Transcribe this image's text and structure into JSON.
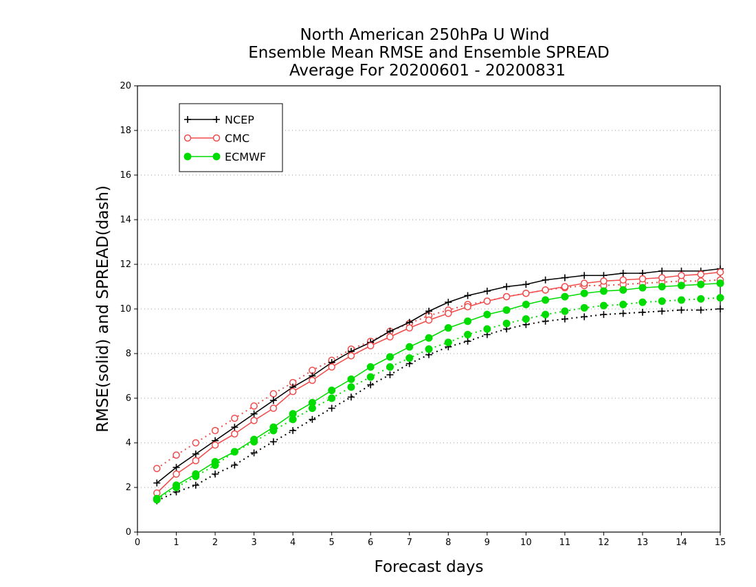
{
  "title_lines": [
    "North American 250hPa U Wind",
    "Ensemble Mean RMSE and Ensemble SPREAD",
    "Average For 20200601 - 20200831"
  ],
  "chart_data": {
    "type": "line",
    "title": "North American 250hPa U Wind / Ensemble Mean RMSE and Ensemble SPREAD / Average For 20200601 - 20200831",
    "xlabel": "Forecast days",
    "ylabel": "RMSE(solid) and SPREAD(dash)",
    "xlim": [
      0,
      15
    ],
    "ylim": [
      0,
      20
    ],
    "x_ticks": [
      0,
      1,
      2,
      3,
      4,
      5,
      6,
      7,
      8,
      9,
      10,
      11,
      12,
      13,
      14,
      15
    ],
    "y_ticks": [
      0,
      2,
      4,
      6,
      8,
      10,
      12,
      14,
      16,
      18,
      20
    ],
    "grid": "horizontal dotted",
    "legend_position": "top-left",
    "x": [
      0.5,
      1,
      1.5,
      2,
      2.5,
      3,
      3.5,
      4,
      4.5,
      5,
      5.5,
      6,
      6.5,
      7,
      7.5,
      8,
      8.5,
      9,
      9.5,
      10,
      10.5,
      11,
      11.5,
      12,
      12.5,
      13,
      13.5,
      14,
      14.5,
      15
    ],
    "series": [
      {
        "name": "NCEP",
        "metric": "RMSE",
        "style": "solid",
        "color": "#000000",
        "marker": "plus",
        "in_legend": true,
        "values": [
          2.2,
          2.9,
          3.5,
          4.1,
          4.7,
          5.3,
          5.9,
          6.5,
          7.0,
          7.6,
          8.1,
          8.5,
          9.0,
          9.4,
          9.9,
          10.3,
          10.6,
          10.8,
          11.0,
          11.1,
          11.3,
          11.4,
          11.5,
          11.5,
          11.6,
          11.6,
          11.7,
          11.7,
          11.7,
          11.8
        ]
      },
      {
        "name": "CMC",
        "metric": "RMSE",
        "style": "solid",
        "color": "#f04c4c",
        "marker": "open-circle",
        "in_legend": true,
        "values": [
          1.75,
          2.6,
          3.2,
          3.9,
          4.4,
          5.0,
          5.55,
          6.3,
          6.8,
          7.4,
          7.9,
          8.35,
          8.75,
          9.15,
          9.5,
          9.8,
          10.1,
          10.35,
          10.55,
          10.7,
          10.85,
          11.0,
          11.15,
          11.25,
          11.3,
          11.35,
          11.4,
          11.5,
          11.55,
          11.65
        ]
      },
      {
        "name": "ECMWF",
        "metric": "RMSE",
        "style": "solid",
        "color": "#00dc00",
        "marker": "filled-circle",
        "in_legend": true,
        "values": [
          1.5,
          2.1,
          2.6,
          3.15,
          3.6,
          4.15,
          4.7,
          5.3,
          5.8,
          6.35,
          6.85,
          7.4,
          7.85,
          8.3,
          8.7,
          9.15,
          9.45,
          9.75,
          9.95,
          10.2,
          10.4,
          10.55,
          10.7,
          10.8,
          10.85,
          10.95,
          11.0,
          11.05,
          11.1,
          11.15
        ]
      },
      {
        "name": "NCEP",
        "metric": "SPREAD",
        "style": "dotted",
        "color": "#000000",
        "marker": "plus",
        "in_legend": false,
        "values": [
          1.4,
          1.8,
          2.1,
          2.6,
          3.0,
          3.55,
          4.05,
          4.55,
          5.05,
          5.55,
          6.05,
          6.6,
          7.05,
          7.55,
          7.95,
          8.3,
          8.55,
          8.85,
          9.1,
          9.3,
          9.45,
          9.55,
          9.65,
          9.75,
          9.8,
          9.85,
          9.9,
          9.95,
          9.95,
          10.0
        ]
      },
      {
        "name": "CMC",
        "metric": "SPREAD",
        "style": "dotted",
        "color": "#f04c4c",
        "marker": "open-circle",
        "in_legend": false,
        "values": [
          2.85,
          3.45,
          4.0,
          4.55,
          5.1,
          5.65,
          6.2,
          6.7,
          7.25,
          7.7,
          8.2,
          8.55,
          9.0,
          9.35,
          9.7,
          9.95,
          10.2,
          10.35,
          10.55,
          10.7,
          10.85,
          10.95,
          11.05,
          11.05,
          11.1,
          11.15,
          11.2,
          11.25,
          11.25,
          11.3
        ]
      },
      {
        "name": "ECMWF",
        "metric": "SPREAD",
        "style": "dotted",
        "color": "#00dc00",
        "marker": "filled-circle",
        "in_legend": false,
        "values": [
          1.45,
          2.0,
          2.5,
          3.0,
          3.6,
          4.05,
          4.55,
          5.05,
          5.55,
          6.0,
          6.5,
          6.95,
          7.4,
          7.8,
          8.2,
          8.5,
          8.85,
          9.1,
          9.35,
          9.55,
          9.75,
          9.9,
          10.05,
          10.15,
          10.2,
          10.3,
          10.35,
          10.4,
          10.45,
          10.5
        ]
      }
    ]
  }
}
